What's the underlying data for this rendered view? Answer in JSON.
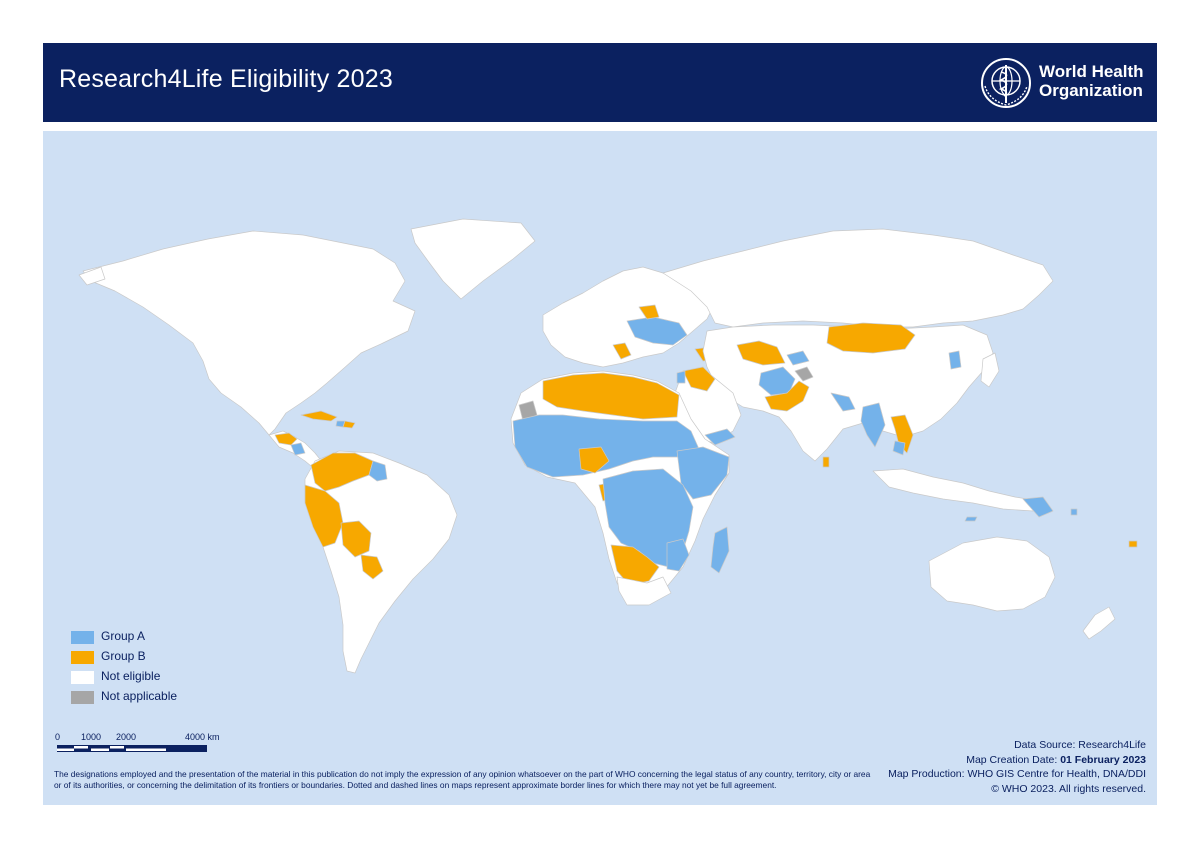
{
  "header": {
    "title": "Research4Life Eligibility 2023",
    "org_line1": "World Health",
    "org_line2": "Organization",
    "logo_icon": "who-emblem-icon"
  },
  "colors": {
    "header_bg": "#0b2160",
    "ocean": "#cfe0f4",
    "group_a": "#74b2ea",
    "group_b": "#f7a800",
    "not_eligible": "#ffffff",
    "not_applicable": "#a6a6a6"
  },
  "legend": [
    {
      "label": "Group A",
      "color": "#74b2ea"
    },
    {
      "label": "Group B",
      "color": "#f7a800"
    },
    {
      "label": "Not eligible",
      "color": "#ffffff"
    },
    {
      "label": "Not applicable",
      "color": "#a6a6a6"
    }
  ],
  "scale_bar": {
    "labels": [
      "0",
      "1000",
      "2000",
      "4000 km"
    ]
  },
  "disclaimer": "The designations employed and the presentation of the material in this publication do not imply the expression of any opinion whatsoever on the part of WHO concerning the legal status of any country, territory, city or area or of its authorities, or concerning the delimitation of its frontiers or boundaries. Dotted and dashed lines on maps represent approximate border lines for which there may not yet be full agreement.",
  "credits": {
    "data_source": "Data Source: Research4Life",
    "creation_prefix": "Map Creation Date: ",
    "creation_date": "01 February 2023",
    "production": "Map Production: WHO GIS Centre for Health, DNA/DDI",
    "copyright": "© WHO 2023. All rights reserved."
  }
}
